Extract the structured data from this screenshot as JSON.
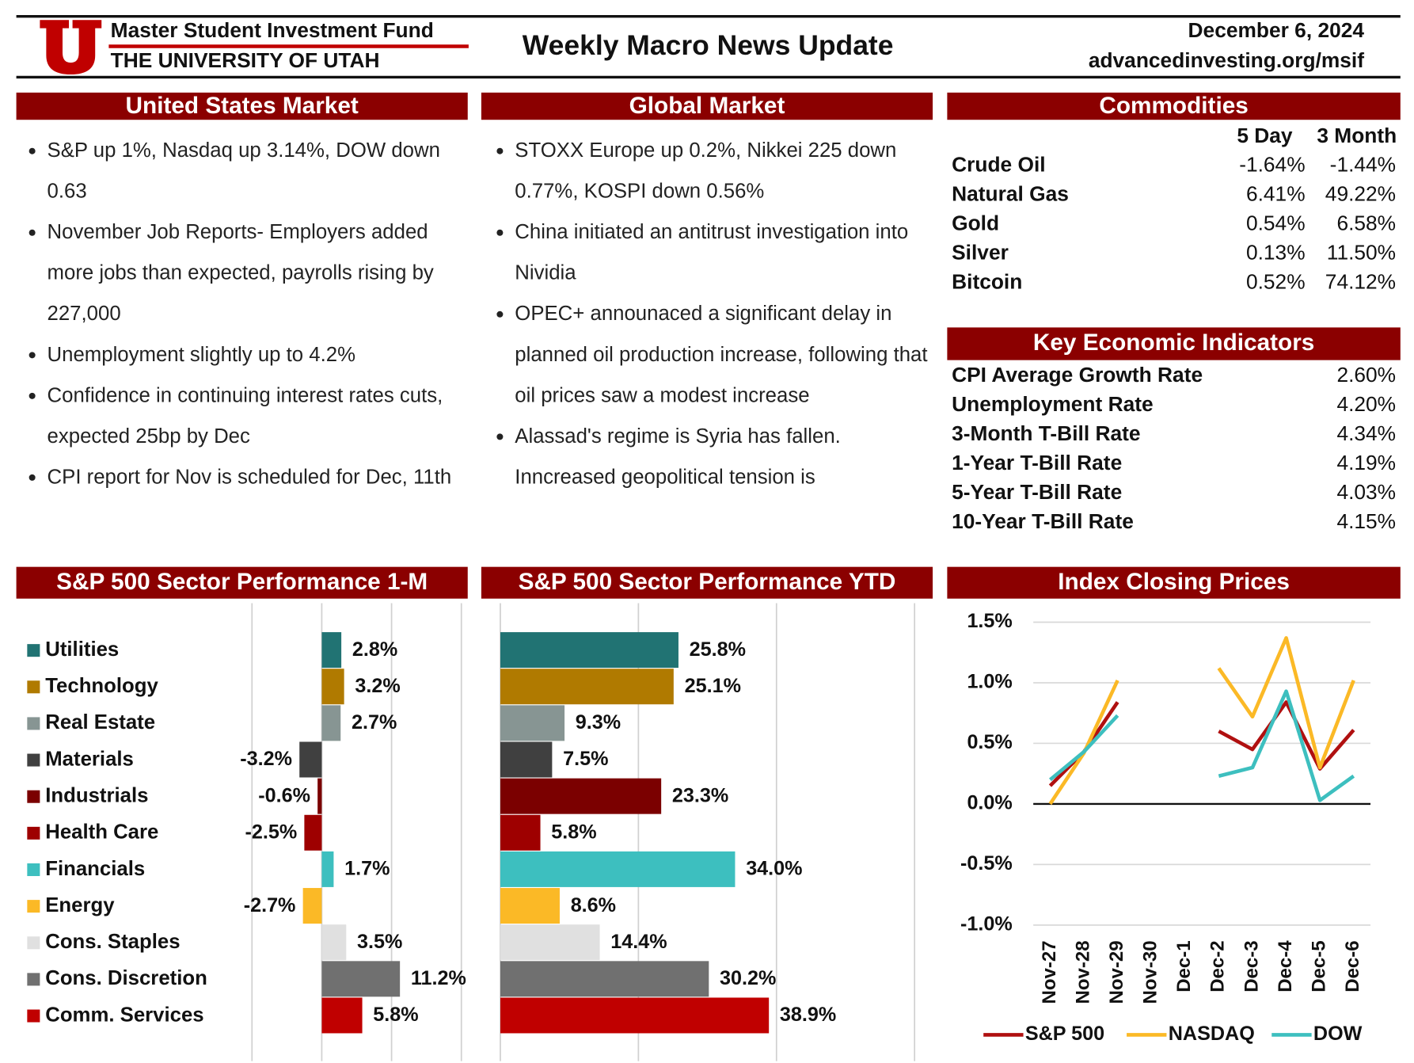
{
  "header": {
    "org": "Master Student Investment Fund",
    "university": "THE UNIVERSITY OF UTAH",
    "title": "Weekly Macro News Update",
    "date": "December 6, 2024",
    "website": "advancedinvesting.org/msif"
  },
  "us_market": {
    "heading": "United States Market",
    "bullets": [
      "S&P up 1%, Nasdaq up 3.14%, DOW down 0.63",
      "November Job Reports- Employers added more jobs than expected, payrolls rising by 227,000",
      "Unemployment slightly up to 4.2%",
      "Confidence in continuing interest rates cuts, expected 25bp by Dec",
      "CPI report for Nov is scheduled for Dec, 11th"
    ]
  },
  "global_market": {
    "heading": "Global Market",
    "bullets": [
      "STOXX Europe up 0.2%, Nikkei 225 down 0.77%, KOSPI down 0.56%",
      "China initiated an antitrust investigation into Nividia",
      "OPEC+ announaced a significant delay in planned oil production increase, following that oil prices saw a modest increase",
      "Alassad's regime is Syria has fallen. Inncreased geopolitical tension is"
    ]
  },
  "commodities": {
    "heading": "Commodities",
    "columns": [
      "5 Day",
      "3 Month"
    ],
    "rows": [
      [
        "Crude Oil",
        "-1.64%",
        "-1.44%"
      ],
      [
        "Natural Gas",
        "6.41%",
        "49.22%"
      ],
      [
        "Gold",
        "0.54%",
        "6.58%"
      ],
      [
        "Silver",
        "0.13%",
        "11.50%"
      ],
      [
        "Bitcoin",
        "0.52%",
        "74.12%"
      ]
    ]
  },
  "indicators": {
    "heading": "Key Economic Indicators",
    "rows": [
      [
        "CPI Average Growth Rate",
        "2.60%"
      ],
      [
        "Unemployment Rate",
        "4.20%"
      ],
      [
        "3-Month T-Bill Rate",
        "4.34%"
      ],
      [
        "1-Year T-Bill Rate",
        "4.19%"
      ],
      [
        "5-Year T-Bill Rate",
        "4.03%"
      ],
      [
        "10-Year T-Bill Rate",
        "4.15%"
      ]
    ]
  },
  "chart_data": [
    {
      "type": "bar",
      "orientation": "horizontal",
      "title": "S&P 500 Sector Performance 1-M",
      "categories": [
        "Utilities",
        "Technology",
        "Real Estate",
        "Materials",
        "Industrials",
        "Health Care",
        "Financials",
        "Energy",
        "Cons. Staples",
        "Cons. Discretion",
        "Comm. Services"
      ],
      "values": [
        2.8,
        3.2,
        2.7,
        -3.2,
        -0.6,
        -2.5,
        1.7,
        -2.7,
        3.5,
        11.2,
        5.8
      ],
      "value_labels": [
        "2.8%",
        "3.2%",
        "2.7%",
        "-3.2%",
        "-0.6%",
        "-2.5%",
        "1.7%",
        "-2.7%",
        "3.5%",
        "11.2%",
        "5.8%"
      ],
      "colors": [
        "#217373",
        "#b07a00",
        "#879593",
        "#404040",
        "#7b0000",
        "#9e0000",
        "#3dbfbf",
        "#fbb926",
        "#e0e0e0",
        "#707070",
        "#c00000"
      ],
      "xlim": [
        -10,
        20
      ],
      "xticks": [
        -10,
        0,
        10,
        20
      ],
      "grid": true
    },
    {
      "type": "bar",
      "orientation": "horizontal",
      "title": "S&P 500 Sector Performance YTD",
      "values": [
        25.8,
        25.1,
        9.3,
        7.5,
        23.3,
        5.8,
        34.0,
        8.6,
        14.4,
        30.2,
        38.9
      ],
      "value_labels": [
        "25.8%",
        "25.1%",
        "9.3%",
        "7.5%",
        "23.3%",
        "5.8%",
        "34.0%",
        "8.6%",
        "14.4%",
        "30.2%",
        "38.9%"
      ],
      "colors": [
        "#217373",
        "#b07a00",
        "#879593",
        "#404040",
        "#7b0000",
        "#9e0000",
        "#3dbfbf",
        "#fbb926",
        "#e0e0e0",
        "#707070",
        "#c00000"
      ],
      "xlim": [
        0,
        60
      ],
      "xticks": [
        0,
        20,
        40,
        60
      ],
      "grid": true
    },
    {
      "type": "line",
      "title": "Index Closing Prices",
      "categories": [
        "Nov-27",
        "Nov-28",
        "Nov-29",
        "Nov-30",
        "Dec-1",
        "Dec-2",
        "Dec-3",
        "Dec-4",
        "Dec-5",
        "Dec-6"
      ],
      "series": [
        {
          "name": "S&P 500",
          "color": "#b01010",
          "values": [
            0.15,
            0.43,
            0.84,
            null,
            null,
            0.6,
            0.45,
            0.84,
            0.29,
            0.61
          ]
        },
        {
          "name": "NASDAQ",
          "color": "#fbb926",
          "values": [
            0.0,
            0.42,
            1.02,
            null,
            null,
            1.12,
            0.72,
            1.37,
            0.3,
            1.02
          ]
        },
        {
          "name": "DOW",
          "color": "#3dbfbf",
          "values": [
            0.2,
            0.43,
            0.73,
            null,
            null,
            0.23,
            0.3,
            0.93,
            0.03,
            0.23
          ]
        }
      ],
      "ylim": [
        -1.0,
        1.5
      ],
      "yticks": [
        {
          "value": -1.0,
          "label": "-1.0%"
        },
        {
          "value": -0.5,
          "label": "-0.5%"
        },
        {
          "value": 0.0,
          "label": "0.0%"
        },
        {
          "value": 0.5,
          "label": "0.5%"
        },
        {
          "value": 1.0,
          "label": "1.0%"
        },
        {
          "value": 1.5,
          "label": "1.5%"
        }
      ],
      "grid": true,
      "legend": "bottom"
    }
  ]
}
